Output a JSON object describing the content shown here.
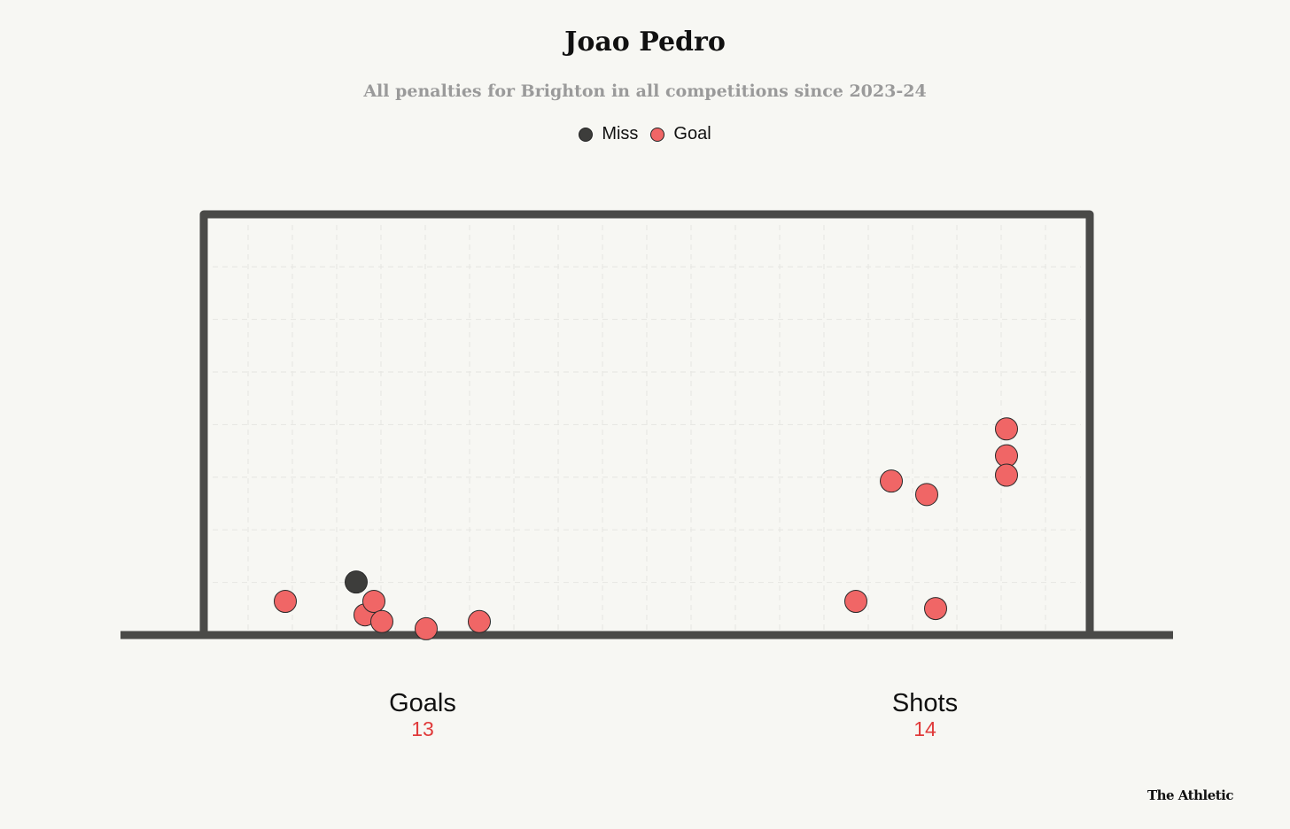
{
  "colors": {
    "goal": "#f06666",
    "miss": "#3d3d3b",
    "frame": "#4a4a48",
    "accent": "#e03a3a"
  },
  "chart_data": {
    "type": "scatter",
    "title": "Joao Pedro",
    "subtitle": "All penalties for Brighton in all competitions since 2023-24",
    "legend": [
      {
        "name": "Miss",
        "color": "#3d3d3b"
      },
      {
        "name": "Goal",
        "color": "#f06666"
      }
    ],
    "legend_placement": "top-center",
    "grid": true,
    "xlim": [
      0,
      1
    ],
    "ylim": [
      0,
      1
    ],
    "series": [
      {
        "name": "Goal",
        "points": [
          {
            "x": 0.092,
            "y": 0.08
          },
          {
            "x": 0.182,
            "y": 0.048
          },
          {
            "x": 0.192,
            "y": 0.08
          },
          {
            "x": 0.201,
            "y": 0.032
          },
          {
            "x": 0.251,
            "y": 0.015
          },
          {
            "x": 0.311,
            "y": 0.032
          },
          {
            "x": 0.736,
            "y": 0.08
          },
          {
            "x": 0.776,
            "y": 0.366
          },
          {
            "x": 0.816,
            "y": 0.334
          },
          {
            "x": 0.826,
            "y": 0.063
          },
          {
            "x": 0.906,
            "y": 0.49
          },
          {
            "x": 0.906,
            "y": 0.426
          },
          {
            "x": 0.906,
            "y": 0.38
          }
        ]
      },
      {
        "name": "Miss",
        "points": [
          {
            "x": 0.172,
            "y": 0.126
          }
        ]
      }
    ],
    "stats": [
      {
        "label": "Goals",
        "value": "13"
      },
      {
        "label": "Shots",
        "value": "14"
      }
    ]
  },
  "brand": "The Athletic"
}
